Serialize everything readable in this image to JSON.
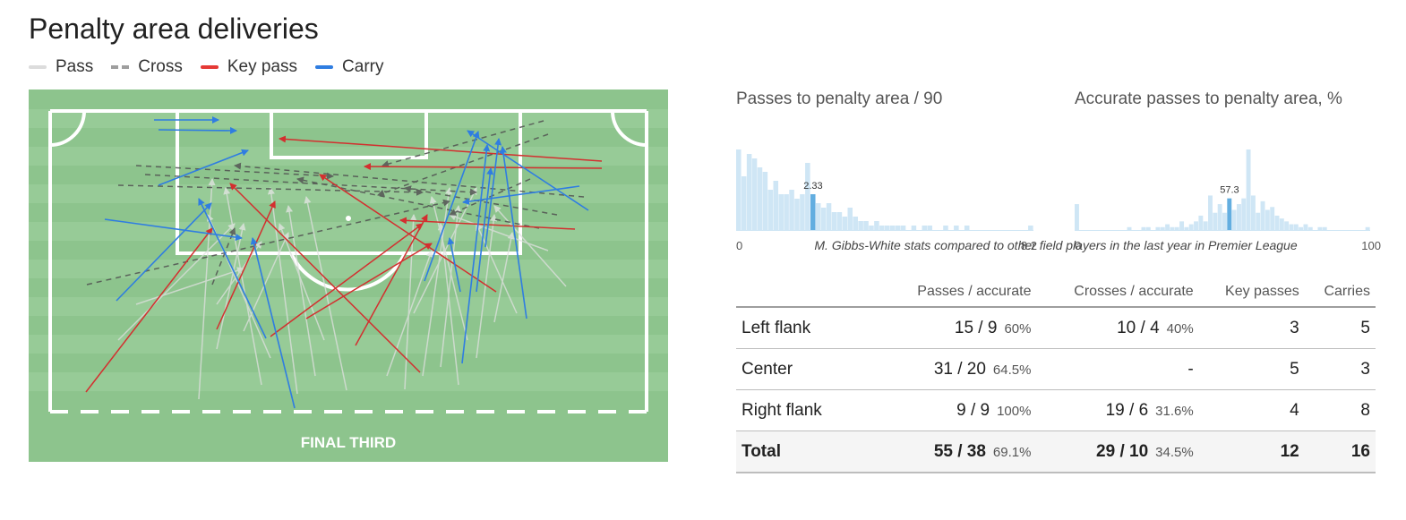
{
  "title": "Penalty area deliveries",
  "legend": [
    {
      "label": "Pass",
      "color": "#dcdcdc",
      "style": "solid"
    },
    {
      "label": "Cross",
      "color": "#9e9e9e",
      "style": "dashed"
    },
    {
      "label": "Key pass",
      "color": "#e53935",
      "style": "solid"
    },
    {
      "label": "Carry",
      "color": "#2f7de1",
      "style": "solid"
    }
  ],
  "pitch": {
    "zone_label": "FINAL THIRD",
    "colors": {
      "grass": "#8dc48d",
      "stripe": "#96c996",
      "lines": "#ffffff"
    }
  },
  "chart_data": [
    {
      "type": "bar",
      "title": "Passes to penalty area / 90",
      "xlim": [
        0,
        8.2
      ],
      "tick_labels": [
        "0",
        "8.2"
      ],
      "highlight": {
        "value": 2.33,
        "label": "2.33",
        "bin": 14
      },
      "values": [
        18,
        12,
        17,
        16,
        14,
        13,
        9,
        11,
        8,
        8,
        9,
        7,
        8,
        15,
        8,
        6,
        5,
        6,
        4,
        4,
        3,
        5,
        3,
        2,
        2,
        1,
        2,
        1,
        1,
        1,
        1,
        1,
        0,
        1,
        0,
        1,
        1,
        0,
        0,
        1,
        0,
        1,
        0,
        1,
        0,
        0,
        0,
        0,
        0,
        0,
        0,
        0,
        0,
        0,
        0,
        1
      ],
      "color": "#cfe6f5",
      "highlight_color": "#63aee0"
    },
    {
      "type": "bar",
      "title": "Accurate passes to penalty area, %",
      "xlim": [
        0,
        100
      ],
      "tick_labels": [
        "0",
        "100"
      ],
      "highlight": {
        "value": 57.3,
        "label": "57.3",
        "bin": 32
      },
      "values": [
        9,
        0,
        0,
        0,
        0,
        0,
        0,
        0,
        0,
        0,
        0,
        1,
        0,
        0,
        1,
        1,
        0,
        1,
        1,
        2,
        1,
        1,
        3,
        1,
        2,
        3,
        5,
        3,
        7,
        6,
        9,
        6,
        11,
        7,
        9,
        11,
        6,
        12,
        6,
        10,
        7,
        8,
        5,
        4,
        3,
        2,
        2,
        1,
        2,
        1,
        0,
        1,
        1,
        0,
        0,
        0,
        0,
        0,
        0,
        0,
        0,
        1
      ],
      "tall_bins": {
        "36": 28,
        "28": 12
      },
      "color": "#cfe6f5",
      "highlight_color": "#63aee0"
    }
  ],
  "caption": "M. Gibbs-White stats compared to other field players in the last year in Premier League",
  "table": {
    "headers": [
      "",
      "Passes / accurate",
      "Crosses / accurate",
      "Key passes",
      "Carries"
    ],
    "rows": [
      {
        "label": "Left flank",
        "passes": "15 / 9",
        "passes_pct": "60%",
        "crosses": "10 / 4",
        "crosses_pct": "40%",
        "key_passes": "3",
        "carries": "5"
      },
      {
        "label": "Center",
        "passes": "31 / 20",
        "passes_pct": "64.5%",
        "crosses": "-",
        "crosses_pct": "",
        "key_passes": "5",
        "carries": "3"
      },
      {
        "label": "Right flank",
        "passes": "9 / 9",
        "passes_pct": "100%",
        "crosses": "19 / 6",
        "crosses_pct": "31.6%",
        "key_passes": "4",
        "carries": "8"
      }
    ],
    "total": {
      "label": "Total",
      "passes": "55 / 38",
      "passes_pct": "69.1%",
      "crosses": "29 / 10",
      "crosses_pct": "34.5%",
      "key_passes": "12",
      "carries": "16"
    }
  }
}
